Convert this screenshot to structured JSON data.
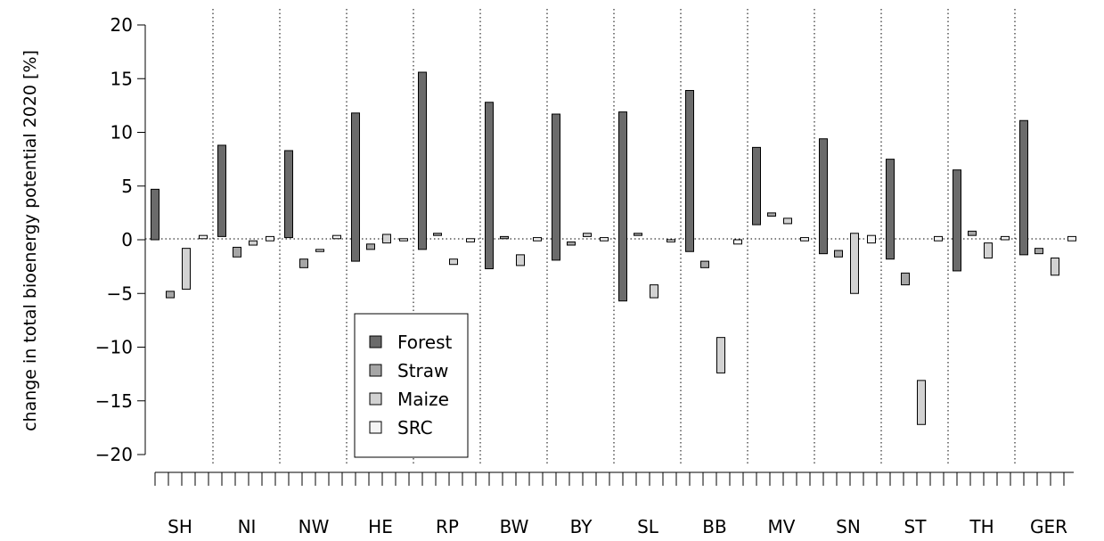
{
  "chart_data": {
    "type": "bar",
    "ylabel": "change in total bioenergy potential 2020 [%]",
    "ylim": [
      -20,
      20
    ],
    "yticks": [
      20,
      15,
      10,
      5,
      0,
      -5,
      -10,
      -15,
      -20
    ],
    "categories": [
      "SH",
      "NI",
      "NW",
      "HE",
      "RP",
      "BW",
      "BY",
      "SL",
      "BB",
      "MV",
      "SN",
      "ST",
      "TH",
      "GER"
    ],
    "series": [
      {
        "name": "Forest",
        "color": "#6b6b6b",
        "ranges": [
          [
            0,
            4.7
          ],
          [
            0.3,
            8.8
          ],
          [
            0.2,
            8.3
          ],
          [
            -2.0,
            11.8
          ],
          [
            -0.9,
            15.6
          ],
          [
            -2.7,
            12.8
          ],
          [
            -1.9,
            11.7
          ],
          [
            -5.7,
            11.9
          ],
          [
            -1.1,
            13.9
          ],
          [
            1.4,
            8.6
          ],
          [
            -1.3,
            9.4
          ],
          [
            -1.8,
            7.5
          ],
          [
            -2.9,
            6.5
          ],
          [
            -1.4,
            11.1
          ]
        ]
      },
      {
        "name": "Straw",
        "color": "#a6a6a6",
        "ranges": [
          [
            -5.4,
            -4.8
          ],
          [
            -1.6,
            -0.7
          ],
          [
            -2.6,
            -1.8
          ],
          [
            -0.9,
            -0.4
          ],
          [
            0.4,
            0.6
          ],
          [
            0.1,
            0.3
          ],
          [
            -0.5,
            -0.2
          ],
          [
            0.4,
            0.6
          ],
          [
            -2.6,
            -2.0
          ],
          [
            2.2,
            2.5
          ],
          [
            -1.6,
            -1.0
          ],
          [
            -4.2,
            -3.1
          ],
          [
            0.4,
            0.8
          ],
          [
            -1.3,
            -0.8
          ]
        ]
      },
      {
        "name": "Maize",
        "color": "#d2d2d2",
        "ranges": [
          [
            -4.6,
            -0.8
          ],
          [
            -0.5,
            -0.1
          ],
          [
            -1.1,
            -0.9
          ],
          [
            -0.3,
            0.5
          ],
          [
            -2.3,
            -1.8
          ],
          [
            -2.4,
            -1.4
          ],
          [
            0.3,
            0.6
          ],
          [
            -5.4,
            -4.2
          ],
          [
            -12.4,
            -9.1
          ],
          [
            1.5,
            2.0
          ],
          [
            -5.0,
            0.6
          ],
          [
            -17.2,
            -13.1
          ],
          [
            -1.7,
            -0.3
          ],
          [
            -3.3,
            -1.7
          ]
        ]
      },
      {
        "name": "SRC",
        "color": "#f4f4f4",
        "ranges": [
          [
            0.1,
            0.4
          ],
          [
            -0.1,
            0.3
          ],
          [
            0.1,
            0.4
          ],
          [
            -0.1,
            0.1
          ],
          [
            -0.2,
            0.1
          ],
          [
            -0.1,
            0.2
          ],
          [
            -0.1,
            0.2
          ],
          [
            -0.2,
            0.0
          ],
          [
            -0.4,
            0.0
          ],
          [
            -0.1,
            0.2
          ],
          [
            -0.3,
            0.4
          ],
          [
            -0.1,
            0.3
          ],
          [
            0.0,
            0.3
          ],
          [
            -0.1,
            0.3
          ]
        ]
      }
    ],
    "legend": [
      "Forest",
      "Straw",
      "Maize",
      "SRC"
    ],
    "legend_position": "lower-left",
    "grid": false,
    "zero_line": "dotted"
  }
}
